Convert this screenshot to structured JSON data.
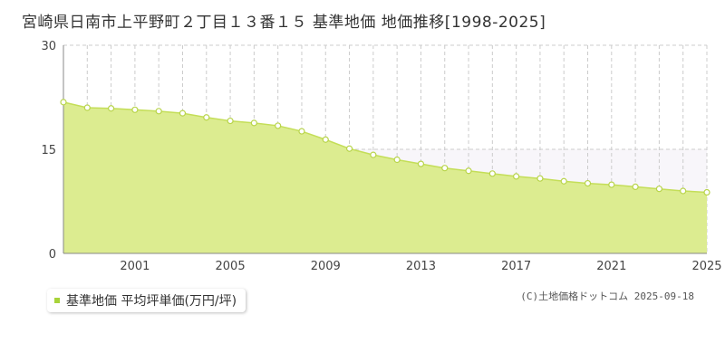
{
  "title": "宮崎県日南市上平野町２丁目１３番１５ 基準地価 地価推移[1998-2025]",
  "colors": {
    "fill": "#dcec90",
    "line": "#c4de58",
    "marker_fill": "#ffffff",
    "marker_stroke": "#b8d44a",
    "legend": "#a8d33a"
  },
  "legend": {
    "label": "基準地価 平均坪単価(万円/坪)"
  },
  "credit": "(C)土地価格ドットコム 2025-09-18",
  "chart_data": {
    "type": "area",
    "title": "宮崎県日南市上平野町２丁目１３番１５ 基準地価 地価推移[1998-2025]",
    "xlabel": "",
    "ylabel": "",
    "x": [
      1998,
      1999,
      2000,
      2001,
      2002,
      2003,
      2004,
      2005,
      2006,
      2007,
      2008,
      2009,
      2010,
      2011,
      2012,
      2013,
      2014,
      2015,
      2016,
      2017,
      2018,
      2019,
      2020,
      2021,
      2022,
      2023,
      2024,
      2025
    ],
    "series": [
      {
        "name": "基準地価 平均坪単価(万円/坪)",
        "values": [
          21.8,
          21.0,
          20.9,
          20.7,
          20.5,
          20.2,
          19.6,
          19.1,
          18.8,
          18.4,
          17.6,
          16.4,
          15.1,
          14.2,
          13.5,
          12.9,
          12.3,
          11.9,
          11.5,
          11.1,
          10.8,
          10.4,
          10.1,
          9.9,
          9.6,
          9.3,
          9.0,
          8.8
        ]
      }
    ],
    "xticks": [
      "2001",
      "2005",
      "2009",
      "2013",
      "2017",
      "2021",
      "2025"
    ],
    "yticks": [
      "0",
      "15",
      "30"
    ],
    "xlim": [
      1998,
      2025
    ],
    "ylim": [
      0,
      30
    ],
    "grid": true,
    "legend_position": "bottom-left"
  }
}
